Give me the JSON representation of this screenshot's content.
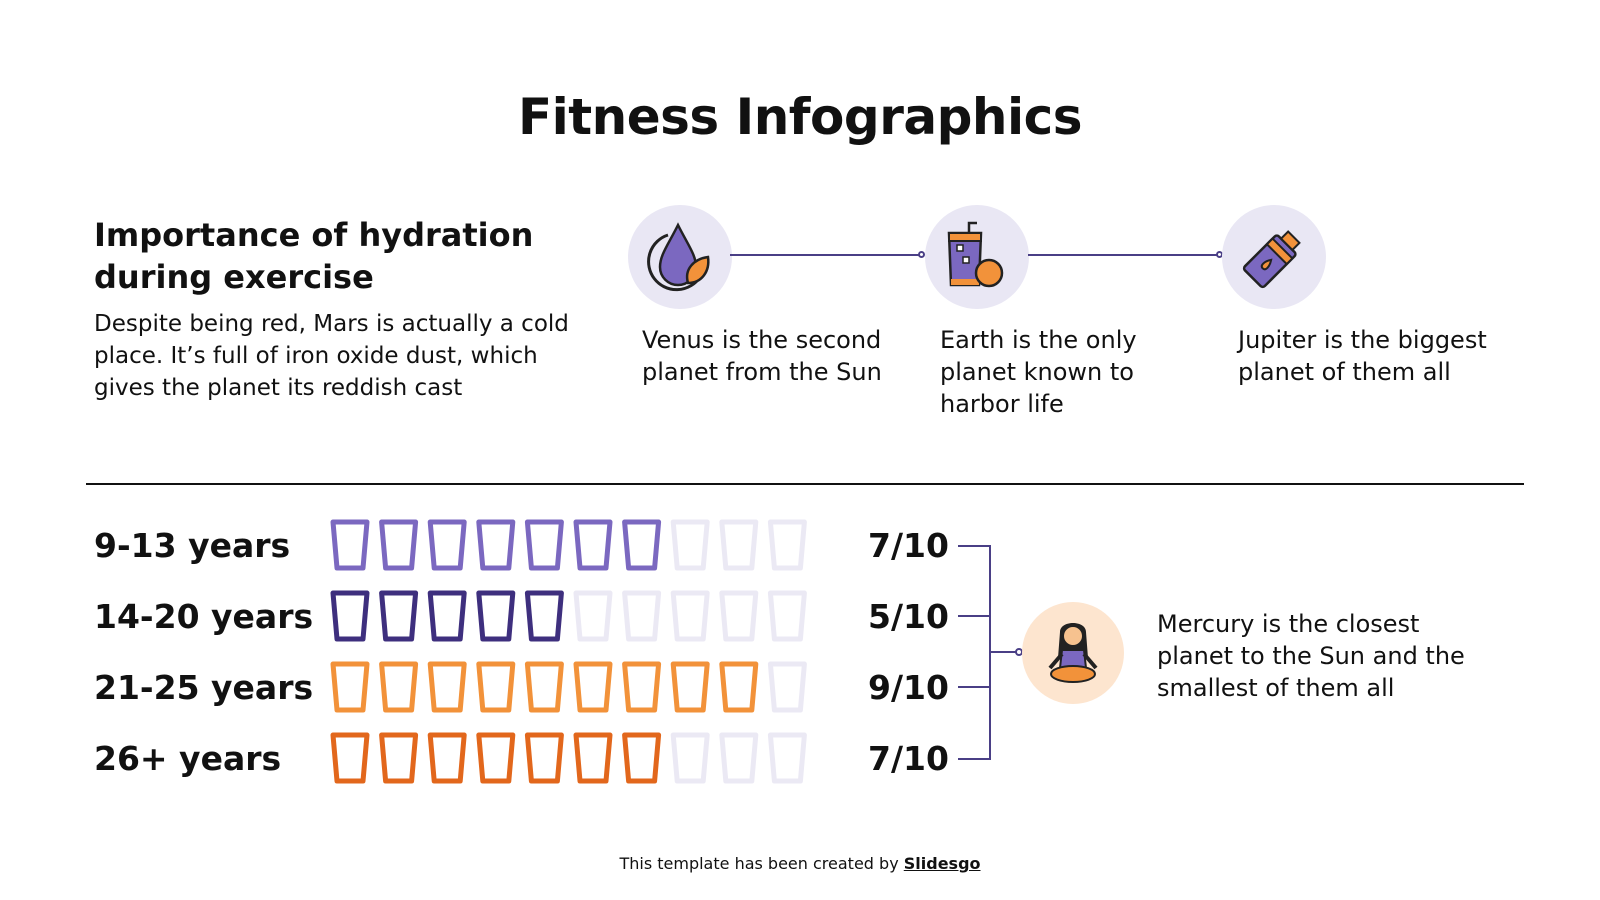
{
  "title": "Fitness Infographics",
  "section": {
    "heading": "Importance of hydration during exercise",
    "body": "Despite being red, Mars is actually a cold place. It’s full of iron oxide dust, which gives the planet its reddish cast"
  },
  "steps": [
    {
      "icon": "water-drop-leaf-icon",
      "text": "Venus is the second planet from the Sun"
    },
    {
      "icon": "juice-glass-apple-icon",
      "text": "Earth is the only planet known to harbor life"
    },
    {
      "icon": "water-bottle-icon",
      "text": "Jupiter is the biggest planet of them all"
    }
  ],
  "ratings": [
    {
      "label": "9-13 years",
      "value": 7,
      "max": 10,
      "score": "7/10",
      "color": "#7b68c0"
    },
    {
      "label": "14-20 years",
      "value": 5,
      "max": 10,
      "score": "5/10",
      "color": "#3e2f7e"
    },
    {
      "label": "21-25 years",
      "value": 9,
      "max": 10,
      "score": "9/10",
      "color": "#f2923a"
    },
    {
      "label": "26+ years",
      "value": 7,
      "max": 10,
      "score": "7/10",
      "color": "#e2671c"
    }
  ],
  "empty_color": "#ebe9f4",
  "summary": {
    "icon": "meditation-person-icon",
    "text": "Mercury is the closest planet to the Sun and the smallest of them all"
  },
  "footer": {
    "prefix": "This template has been created by ",
    "brand": "Slidesgo"
  }
}
